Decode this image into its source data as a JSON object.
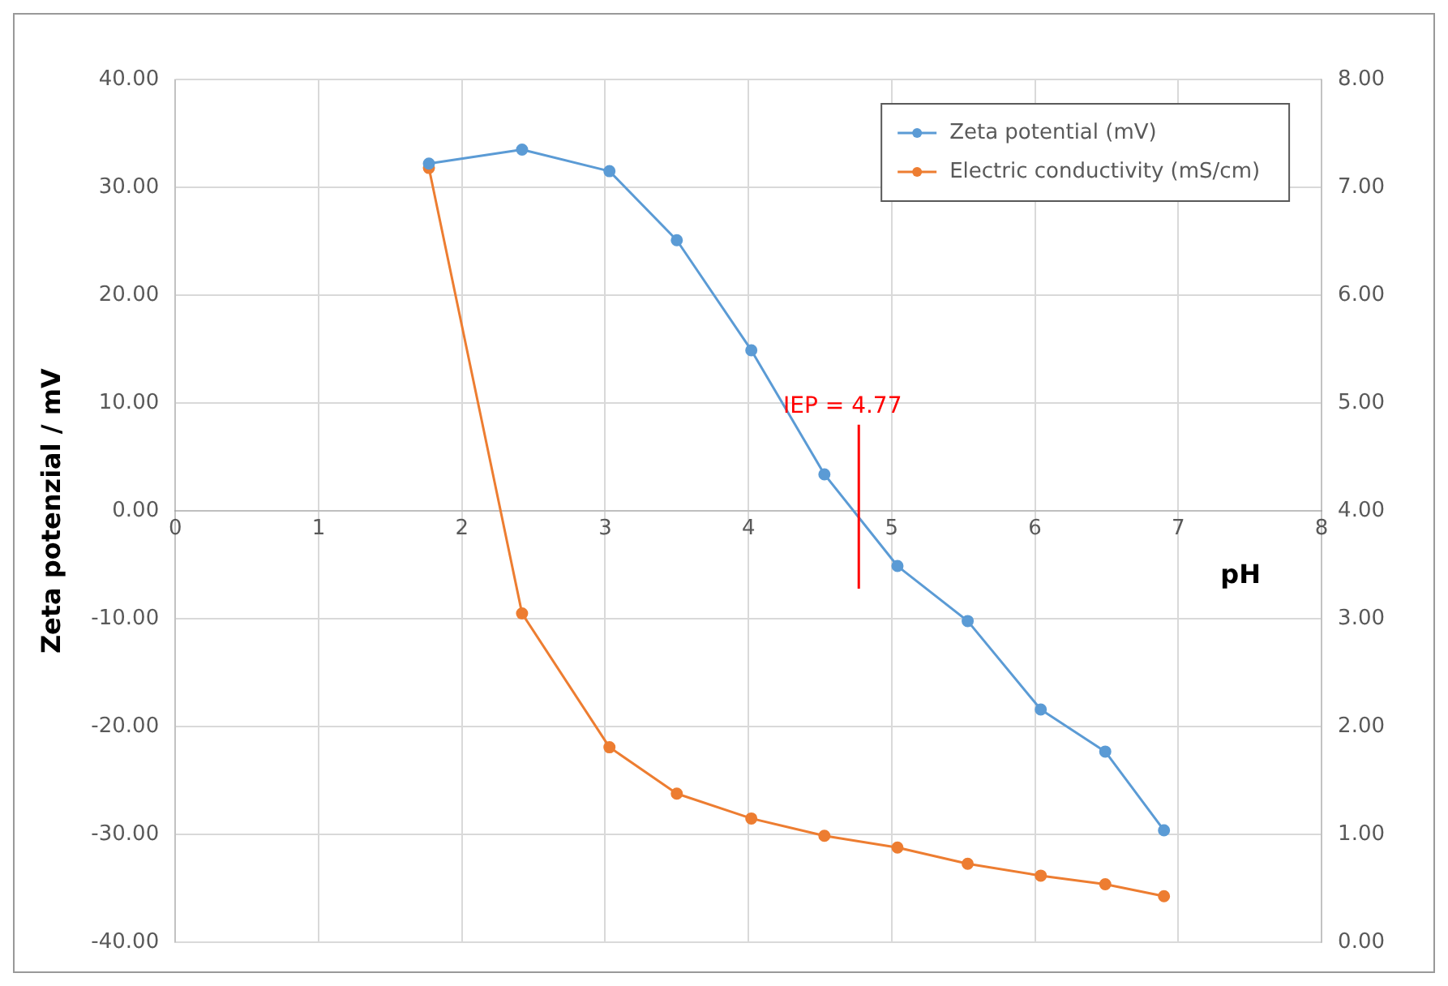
{
  "chart_data": {
    "type": "line",
    "xlabel": "pH",
    "ylabel": "Zeta potenzial / mV",
    "xlim": [
      0,
      8
    ],
    "xticks": [
      0,
      1,
      2,
      3,
      4,
      5,
      6,
      7,
      8
    ],
    "ylim": [
      -40,
      40
    ],
    "yticks": [
      {
        "value": -40,
        "label": "-40.00"
      },
      {
        "value": -30,
        "label": "-30.00"
      },
      {
        "value": -20,
        "label": "-20.00"
      },
      {
        "value": -10,
        "label": "-10.00"
      },
      {
        "value": 0,
        "label": "0.00"
      },
      {
        "value": 10,
        "label": "10.00"
      },
      {
        "value": 20,
        "label": "20.00"
      },
      {
        "value": 30,
        "label": "30.00"
      },
      {
        "value": 40,
        "label": "40.00"
      }
    ],
    "y2lim": [
      0,
      8
    ],
    "y2ticks": [
      {
        "value": 0,
        "label": "0.00"
      },
      {
        "value": 1,
        "label": "1.00"
      },
      {
        "value": 2,
        "label": "2.00"
      },
      {
        "value": 3,
        "label": "3.00"
      },
      {
        "value": 4,
        "label": "4.00"
      },
      {
        "value": 5,
        "label": "5.00"
      },
      {
        "value": 6,
        "label": "6.00"
      },
      {
        "value": 7,
        "label": "7.00"
      },
      {
        "value": 8,
        "label": "8.00"
      }
    ],
    "series": [
      {
        "name": "Zeta potential (mV)",
        "color": "#5b9bd5",
        "x": [
          1.77,
          2.42,
          3.03,
          3.5,
          4.02,
          4.53,
          5.04,
          5.53,
          6.04,
          6.49,
          6.9
        ],
        "values": [
          32.2,
          33.5,
          31.5,
          25.1,
          14.9,
          3.4,
          -5.1,
          -10.2,
          -18.4,
          -22.3,
          -29.6
        ]
      },
      {
        "name": "Electric conductivity (mS/cm)",
        "color": "#ed7d31",
        "axis": "y2",
        "x": [
          1.77,
          2.42,
          3.03,
          3.5,
          4.02,
          4.53,
          5.04,
          5.53,
          6.04,
          6.49,
          6.9
        ],
        "values": [
          7.18,
          3.05,
          1.81,
          1.38,
          1.15,
          0.99,
          0.88,
          0.73,
          0.62,
          0.54,
          0.43
        ]
      }
    ],
    "ref_lines": [
      {
        "axis": "x",
        "value": 4.77,
        "label": "IEP = 4.77",
        "color": "#ff0000"
      }
    ],
    "grid": true,
    "legend": "top right",
    "marker": "circle",
    "line_style": "solid"
  }
}
